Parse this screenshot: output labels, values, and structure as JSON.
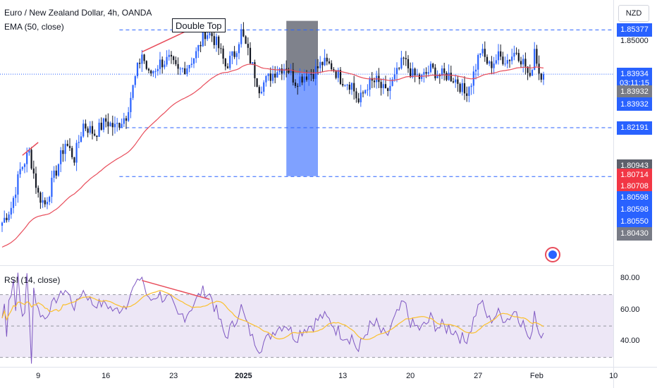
{
  "header": {
    "title": "Euro / New Zealand Dollar, 4h, OANDA",
    "ema_label": "EMA (50, close)",
    "rsi_label": "RSI (14, close)",
    "currency": "NZD"
  },
  "colors": {
    "up": "#2962ff",
    "down": "#131722",
    "ema": "#e84d5b",
    "rsi": "#7e57c2",
    "rsi_ma": "#fbc02d",
    "rsi_band": "#ede7f6",
    "box_grey": "#787b86",
    "box_blue": "#2962ff",
    "level_line": "#2962ff"
  },
  "annotations": {
    "double_top": "Double Top"
  },
  "price_badges": [
    {
      "text": "1.85377",
      "price": 1.85377,
      "color": "#2962ff"
    },
    {
      "text": "1.83934",
      "price": 1.83934,
      "color": "#2962ff"
    },
    {
      "text": "03:11:15",
      "price": 1.8364,
      "color": "#2962ff"
    },
    {
      "text": "1.83932",
      "price": 1.8336,
      "color": "#787b86"
    },
    {
      "text": "1.83932",
      "price": 1.8296,
      "color": "#2962ff"
    },
    {
      "text": "1.82191",
      "price": 1.82191,
      "color": "#2962ff"
    },
    {
      "text": "1.80943",
      "price": 1.80943,
      "color": "#5d606b"
    },
    {
      "text": "1.80714",
      "price": 1.8064,
      "color": "#f23645"
    },
    {
      "text": "1.80708",
      "price": 1.8029,
      "color": "#f23645"
    },
    {
      "text": "1.80598",
      "price": 1.7991,
      "color": "#2962ff"
    },
    {
      "text": "1.80598",
      "price": 1.7952,
      "color": "#2962ff"
    },
    {
      "text": "1.80550",
      "price": 1.7913,
      "color": "#2962ff"
    },
    {
      "text": "1.80430",
      "price": 1.7874,
      "color": "#787b86"
    }
  ],
  "price_axis": [
    {
      "text": "1.85000",
      "price": 1.85
    }
  ],
  "rsi_axis": [
    {
      "text": "80.00",
      "value": 80
    },
    {
      "text": "60.00",
      "value": 60
    },
    {
      "text": "40.00",
      "value": 40
    }
  ],
  "x_axis": [
    {
      "text": "9",
      "idx": 16,
      "bold": false
    },
    {
      "text": "16",
      "idx": 46,
      "bold": false
    },
    {
      "text": "23",
      "idx": 76,
      "bold": false
    },
    {
      "text": "2025",
      "idx": 107,
      "bold": true
    },
    {
      "text": "13",
      "idx": 151,
      "bold": false
    },
    {
      "text": "20",
      "idx": 181,
      "bold": false
    },
    {
      "text": "27",
      "idx": 211,
      "bold": false
    },
    {
      "text": "Feb",
      "idx": 237,
      "bold": false
    },
    {
      "text": "10",
      "idx": 271,
      "bold": false
    }
  ],
  "chart_data": [
    {
      "type": "candlestick",
      "title": "Euro / New Zealand Dollar, 4h, OANDA",
      "ylim": [
        1.778,
        1.8635
      ],
      "levels": [
        1.85377,
        1.83934,
        1.82191,
        1.80598
      ],
      "series": [
        {
          "name": "EMA (50, close)"
        }
      ],
      "shapes": {
        "grey_box": {
          "x": [
            126,
            140
          ],
          "y": [
            1.8397,
            1.8567
          ]
        },
        "blue_box": {
          "x": [
            126,
            140
          ],
          "y": [
            1.8061,
            1.8397
          ]
        }
      },
      "trendlines": [
        {
          "x": [
            62,
            92
          ],
          "y": [
            1.8466,
            1.8569
          ]
        },
        {
          "x": [
            9,
            16
          ],
          "y": [
            1.8129,
            1.8171
          ]
        }
      ],
      "anchors": [
        [
          0,
          1.791
        ],
        [
          4,
          1.796
        ],
        [
          8,
          1.808
        ],
        [
          12,
          1.814
        ],
        [
          16,
          1.8
        ],
        [
          19,
          1.797
        ],
        [
          24,
          1.808
        ],
        [
          28,
          1.817
        ],
        [
          32,
          1.812
        ],
        [
          36,
          1.823
        ],
        [
          41,
          1.82
        ],
        [
          46,
          1.824
        ],
        [
          50,
          1.822
        ],
        [
          55,
          1.826
        ],
        [
          58,
          1.835
        ],
        [
          60,
          1.841
        ],
        [
          62,
          1.846
        ],
        [
          65,
          1.839
        ],
        [
          70,
          1.843
        ],
        [
          74,
          1.844
        ],
        [
          78,
          1.84
        ],
        [
          82,
          1.842
        ],
        [
          86,
          1.846
        ],
        [
          90,
          1.853
        ],
        [
          93,
          1.852
        ],
        [
          96,
          1.848
        ],
        [
          99,
          1.842
        ],
        [
          103,
          1.846
        ],
        [
          106,
          1.853
        ],
        [
          110,
          1.844
        ],
        [
          114,
          1.835
        ],
        [
          118,
          1.838
        ],
        [
          122,
          1.841
        ],
        [
          126,
          1.842
        ],
        [
          130,
          1.837
        ],
        [
          134,
          1.839
        ],
        [
          138,
          1.84
        ],
        [
          142,
          1.843
        ],
        [
          146,
          1.842
        ],
        [
          150,
          1.838
        ],
        [
          155,
          1.836
        ],
        [
          158,
          1.83
        ],
        [
          162,
          1.836
        ],
        [
          166,
          1.837
        ],
        [
          170,
          1.833
        ],
        [
          174,
          1.838
        ],
        [
          178,
          1.844
        ],
        [
          182,
          1.839
        ],
        [
          186,
          1.838
        ],
        [
          190,
          1.841
        ],
        [
          194,
          1.839
        ],
        [
          198,
          1.839
        ],
        [
          202,
          1.837
        ],
        [
          205,
          1.833
        ],
        [
          208,
          1.837
        ],
        [
          212,
          1.847
        ],
        [
          216,
          1.842
        ],
        [
          220,
          1.845
        ],
        [
          224,
          1.844
        ],
        [
          228,
          1.847
        ],
        [
          232,
          1.842
        ],
        [
          234,
          1.837
        ],
        [
          236,
          1.848
        ],
        [
          238,
          1.84
        ],
        [
          240,
          1.8393
        ]
      ]
    },
    {
      "type": "line",
      "title": "RSI (14, close)",
      "ylim": [
        24,
        86
      ],
      "levels": [
        70,
        50,
        30
      ],
      "trendlines": [
        {
          "x": [
            62,
            92
          ],
          "y": [
            79,
            67
          ]
        }
      ],
      "series": [
        {
          "name": "RSI (14, close)"
        }
      ]
    }
  ]
}
